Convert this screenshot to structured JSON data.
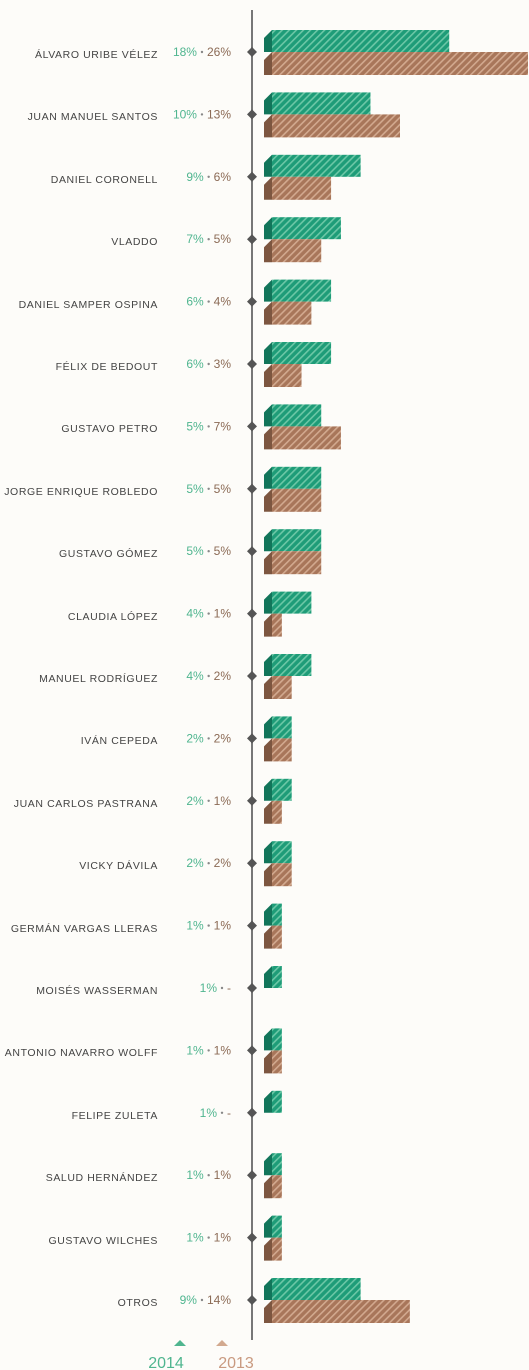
{
  "chart_data": {
    "type": "bar",
    "categories": [
      "ÁLVARO URIBE VÉLEZ",
      "JUAN MANUEL SANTOS",
      "DANIEL CORONELL",
      "VLADDO",
      "DANIEL SAMPER OSPINA",
      "FÉLIX DE BEDOUT",
      "GUSTAVO PETRO",
      "JORGE ENRIQUE ROBLEDO",
      "GUSTAVO GÓMEZ",
      "CLAUDIA LÓPEZ",
      "MANUEL RODRÍGUEZ",
      "IVÁN CEPEDA",
      "JUAN CARLOS PASTRANA",
      "VICKY DÁVILA",
      "GERMÁN VARGAS LLERAS",
      "MOISÉS WASSERMAN",
      "ANTONIO NAVARRO WOLFF",
      "FELIPE ZULETA",
      "SALUD HERNÁNDEZ",
      "GUSTAVO WILCHES",
      "OTROS"
    ],
    "series": [
      {
        "name": "2014",
        "color": "#1e9c78",
        "values": [
          18,
          10,
          9,
          7,
          6,
          6,
          5,
          5,
          5,
          4,
          4,
          2,
          2,
          2,
          1,
          1,
          1,
          1,
          1,
          1,
          9
        ],
        "value_labels": [
          "18%",
          "10%",
          "9%",
          "7%",
          "6%",
          "6%",
          "5%",
          "5%",
          "5%",
          "4%",
          "4%",
          "2%",
          "2%",
          "2%",
          "1%",
          "1%",
          "1%",
          "1%",
          "1%",
          "1%",
          "9%"
        ]
      },
      {
        "name": "2013",
        "color": "#a8765a",
        "values": [
          26,
          13,
          6,
          5,
          4,
          3,
          7,
          5,
          5,
          1,
          2,
          2,
          1,
          2,
          1,
          null,
          1,
          null,
          1,
          1,
          14
        ],
        "value_labels": [
          "26%",
          "13%",
          "6%",
          "5%",
          "4%",
          "3%",
          "7%",
          "5%",
          "5%",
          "1%",
          "2%",
          "2%",
          "1%",
          "2%",
          "1%",
          "-",
          "1%",
          "-",
          "1%",
          "1%",
          "14%"
        ]
      }
    ],
    "xlim": [
      0,
      26
    ]
  }
}
